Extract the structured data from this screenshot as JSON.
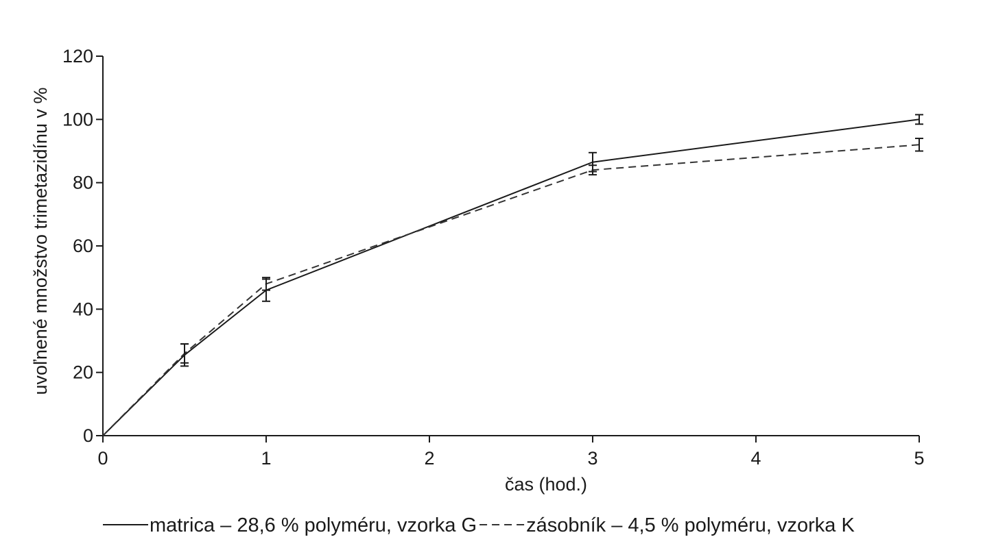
{
  "chart_data": {
    "type": "line",
    "title": "",
    "xlabel": "čas (hod.)",
    "ylabel": "uvoľnené množstvo trimetazidínu v %",
    "xlim": [
      0,
      5
    ],
    "ylim": [
      0,
      120
    ],
    "xticks": [
      0,
      1,
      2,
      3,
      4,
      5
    ],
    "yticks": [
      0,
      20,
      40,
      60,
      80,
      100,
      120
    ],
    "grid": false,
    "legend_position": "bottom",
    "series": [
      {
        "name": "matrica",
        "legend_label": "matrica – 28,6 % polyméru, vzorka G",
        "line_style": "solid",
        "color": "#1a1a1a",
        "x": [
          0,
          0.5,
          1,
          3,
          5
        ],
        "y": [
          0,
          25.5,
          46,
          86.5,
          100
        ],
        "error": [
          0,
          3.5,
          3.5,
          3,
          1.5
        ]
      },
      {
        "name": "zásobník",
        "legend_label": "zásobník – 4,5 % polyméru, vzorka K",
        "line_style": "dashed",
        "color": "#333333",
        "x": [
          0,
          0.5,
          1,
          3,
          5
        ],
        "y": [
          0,
          26,
          48,
          84,
          92
        ],
        "error": [
          0,
          3,
          2,
          1.5,
          2
        ]
      }
    ]
  }
}
